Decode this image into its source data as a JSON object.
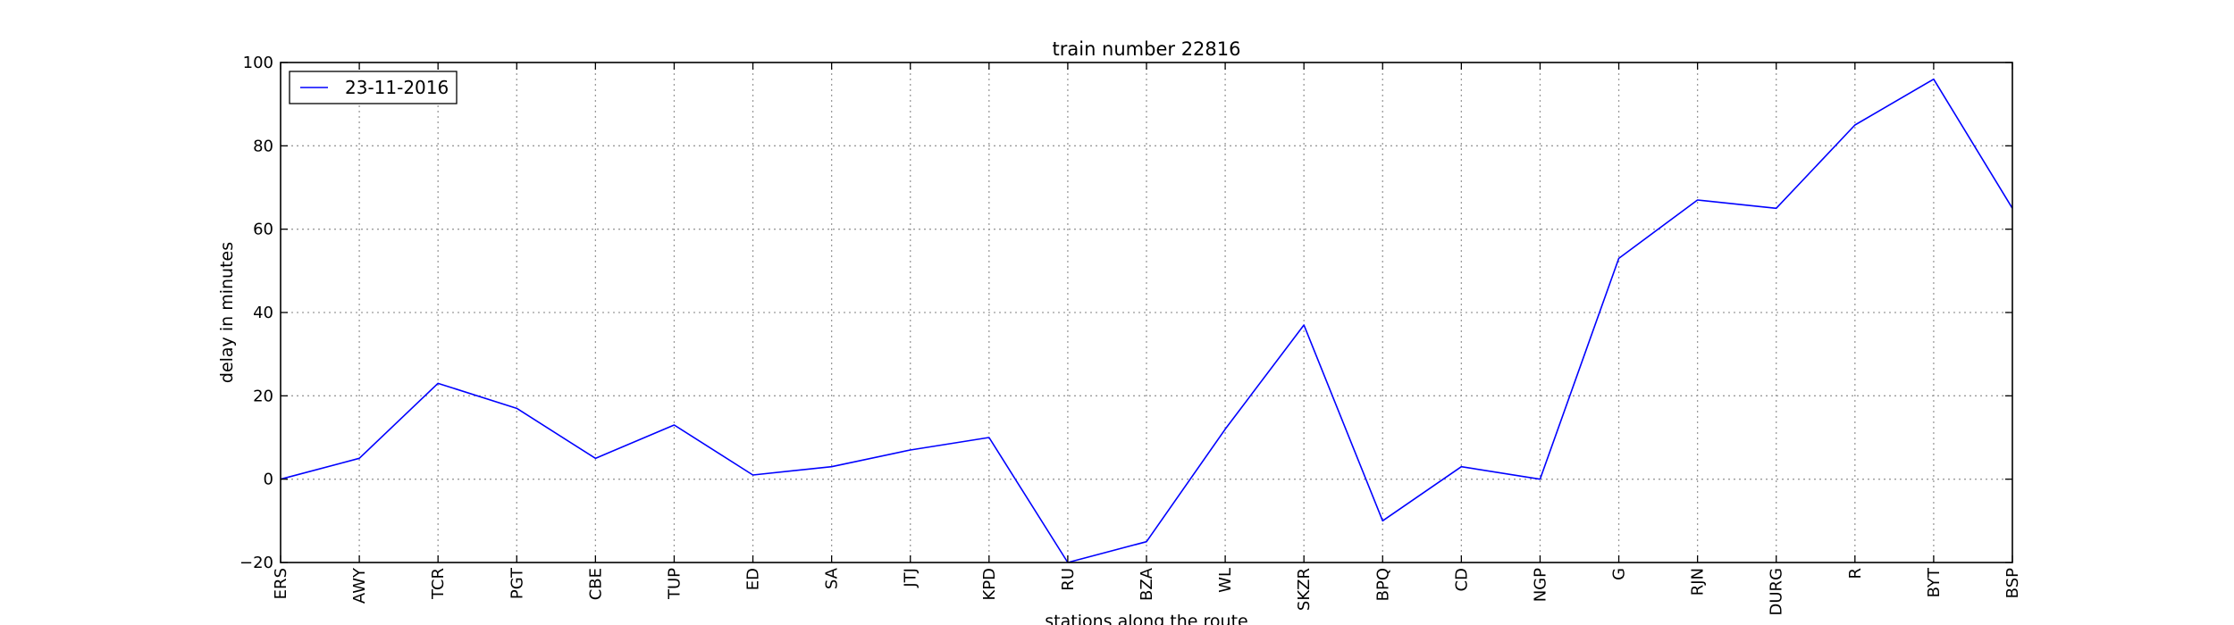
{
  "chart_data": {
    "type": "line",
    "title": "train number 22816",
    "xlabel": "stations along the route",
    "ylabel": "delay in minutes",
    "ylim": [
      -20,
      100
    ],
    "yticks": [
      -20,
      0,
      20,
      40,
      60,
      80,
      100
    ],
    "grid": true,
    "legend_position": "top-left",
    "categories": [
      "ERS",
      "AWY",
      "TCR",
      "PGT",
      "CBE",
      "TUP",
      "ED",
      "SA",
      "JTJ",
      "KPD",
      "RU",
      "BZA",
      "WL",
      "SKZR",
      "BPQ",
      "CD",
      "NGP",
      "G",
      "RJN",
      "DURG",
      "R",
      "BYT",
      "BSP"
    ],
    "series": [
      {
        "name": "23-11-2016",
        "color": "#0000ff",
        "values": [
          0,
          5,
          23,
          17,
          5,
          13,
          1,
          3,
          7,
          10,
          -20,
          -15,
          12,
          37,
          -10,
          3,
          0,
          53,
          67,
          65,
          85,
          96,
          65
        ]
      }
    ]
  }
}
